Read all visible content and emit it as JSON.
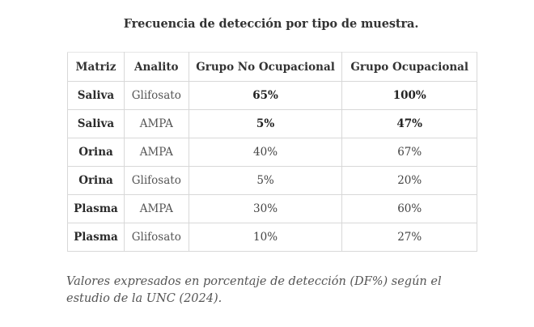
{
  "title": "Frecuencia de detección por tipo de muestra.",
  "table": {
    "headers": [
      "Matriz",
      "Analito",
      "Grupo No Ocupacional",
      "Grupo Ocupacional"
    ],
    "rows": [
      {
        "matriz": "Saliva",
        "analito": "Glifosato",
        "no_ocupacional": "65%",
        "ocupacional": "100%"
      },
      {
        "matriz": "Saliva",
        "analito": "AMPA",
        "no_ocupacional": "5%",
        "ocupacional": "47%"
      },
      {
        "matriz": "Orina",
        "analito": "AMPA",
        "no_ocupacional": "40%",
        "ocupacional": "67%"
      },
      {
        "matriz": "Orina",
        "analito": "Glifosato",
        "no_ocupacional": "5%",
        "ocupacional": "20%"
      },
      {
        "matriz": "Plasma",
        "analito": "AMPA",
        "no_ocupacional": "30%",
        "ocupacional": "60%"
      },
      {
        "matriz": "Plasma",
        "analito": "Glifosato",
        "no_ocupacional": "10%",
        "ocupacional": "27%"
      }
    ]
  },
  "note": "Valores expresados en porcentaje de detección (DF%) según el estudio de la UNC (2024)."
}
